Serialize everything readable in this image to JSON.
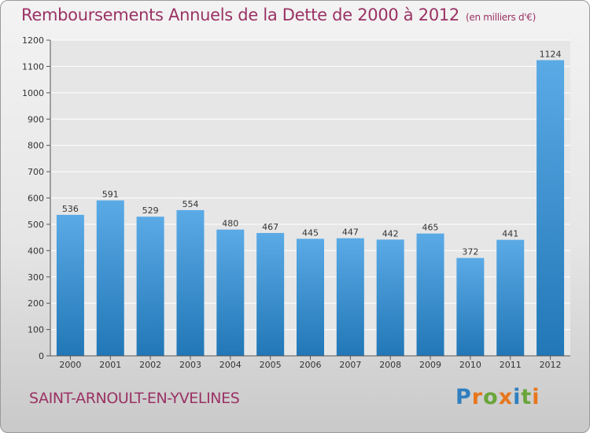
{
  "header": {
    "title": "Remboursements Annuels de la Dette de 2000 à 2012",
    "unit": "(en milliers d'€)"
  },
  "footer": {
    "commune": "SAINT-ARNOULT-EN-YVELINES",
    "brand_letters": [
      {
        "char": "P",
        "color": "#2f7fc1"
      },
      {
        "char": "r",
        "color": "#e8761c"
      },
      {
        "char": "o",
        "color": "#6aa53a"
      },
      {
        "char": "x",
        "color": "#e8761c"
      },
      {
        "char": "i",
        "color": "#2f7fc1"
      },
      {
        "char": "t",
        "color": "#6aa53a"
      },
      {
        "char": "i",
        "color": "#e8761c"
      }
    ]
  },
  "colors": {
    "bar_light": "#5aaae6",
    "bar_dark": "#2277b6",
    "title": "#9a3264"
  },
  "chart_data": {
    "type": "bar",
    "categories": [
      "2000",
      "2001",
      "2002",
      "2003",
      "2004",
      "2005",
      "2006",
      "2007",
      "2008",
      "2009",
      "2010",
      "2011",
      "2012"
    ],
    "values": [
      536,
      591,
      529,
      554,
      480,
      467,
      445,
      447,
      442,
      465,
      372,
      441,
      1124
    ],
    "value_labels": [
      "536",
      "591",
      "529",
      "554",
      "480",
      "467",
      "445",
      "447",
      "442",
      "465",
      "372",
      "441",
      "1124"
    ],
    "ylim": [
      0,
      1200
    ],
    "yticks": [
      0,
      100,
      200,
      300,
      400,
      500,
      600,
      700,
      800,
      900,
      1000,
      1100,
      1200
    ],
    "grid": true,
    "title": "Remboursements Annuels de la Dette de 2000 à 2012",
    "xlabel": "",
    "ylabel": ""
  }
}
